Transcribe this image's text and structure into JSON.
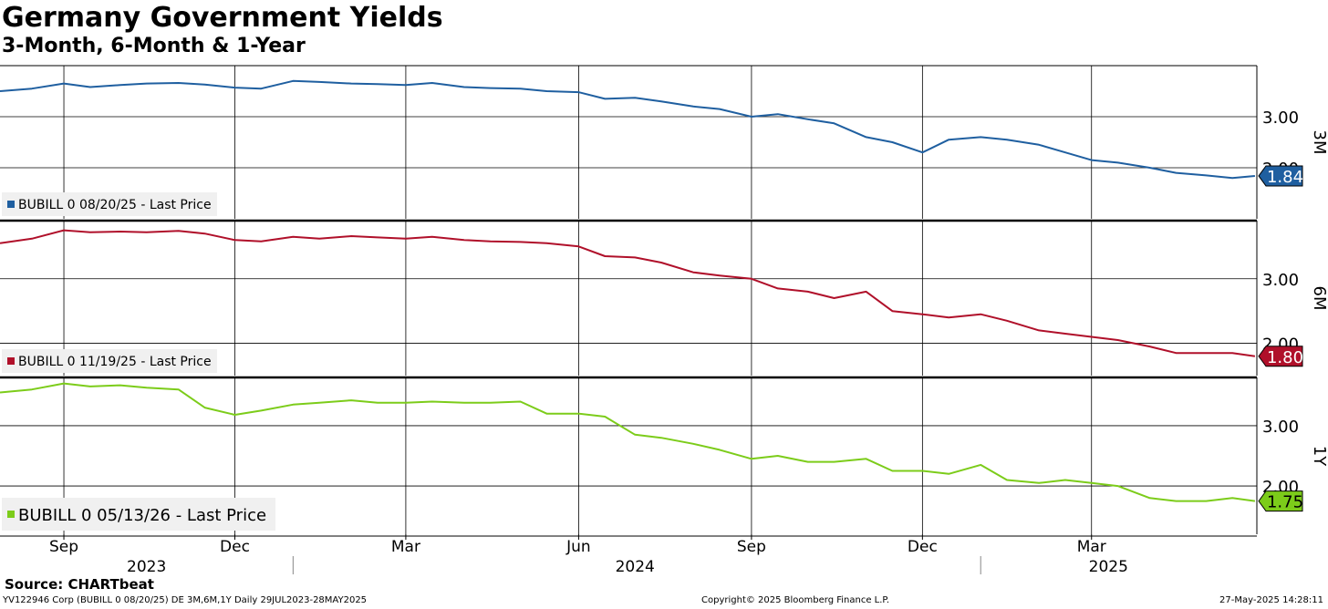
{
  "title": "Germany Government Yields",
  "subtitle": "3-Month, 6-Month & 1-Year",
  "source": "Source: CHARTbeat",
  "footer": {
    "left": "YV122946 Corp (BUBILL 0 08/20/25) DE 3M,6M,1Y  Daily 29JUL2023-28MAY2025",
    "center": "Copyright© 2025 Bloomberg Finance L.P.",
    "right": "27-May-2025 14:28:11"
  },
  "colors": {
    "blue": "#1f5fa0",
    "red": "#b0102a",
    "green": "#7ccc1a"
  },
  "chart_data": {
    "type": "line",
    "x_range": [
      "2023-07-29",
      "2025-05-28"
    ],
    "month_labels": [
      {
        "label": "Sep",
        "date": "2023-09-01"
      },
      {
        "label": "Dec",
        "date": "2023-12-01"
      },
      {
        "label": "Mar",
        "date": "2024-03-01"
      },
      {
        "label": "Jun",
        "date": "2024-06-01"
      },
      {
        "label": "Sep",
        "date": "2024-09-01"
      },
      {
        "label": "Dec",
        "date": "2024-12-01"
      },
      {
        "label": "Mar",
        "date": "2025-03-01"
      }
    ],
    "year_labels": [
      {
        "label": "2023",
        "date": "2023-10-15"
      },
      {
        "label": "2024",
        "date": "2024-07-01"
      },
      {
        "label": "2025",
        "date": "2025-03-10"
      }
    ],
    "year_dividers": [
      "2024-01-01",
      "2025-01-01"
    ],
    "panels": [
      {
        "axis_label": "3M",
        "ylim": [
          1.0,
          4.0
        ],
        "y_ticks": [
          3.0,
          2.0
        ],
        "tick_labels": [
          "3.00",
          "2.00"
        ],
        "legend": "BUBILL 0 08/20/25 - Last Price",
        "last_value": "1.84",
        "color": "#1f5fa0",
        "series": {
          "name": "BUBILL 0 08/20/25 - Last Price",
          "x": [
            "2023-07-29",
            "2023-08-15",
            "2023-09-01",
            "2023-09-15",
            "2023-10-01",
            "2023-10-15",
            "2023-11-01",
            "2023-11-15",
            "2023-12-01",
            "2023-12-15",
            "2024-01-01",
            "2024-01-15",
            "2024-02-01",
            "2024-02-15",
            "2024-03-01",
            "2024-03-15",
            "2024-04-01",
            "2024-04-15",
            "2024-05-01",
            "2024-05-15",
            "2024-06-01",
            "2024-06-15",
            "2024-07-01",
            "2024-07-15",
            "2024-08-01",
            "2024-08-15",
            "2024-09-01",
            "2024-09-15",
            "2024-10-01",
            "2024-10-15",
            "2024-11-01",
            "2024-11-15",
            "2024-12-01",
            "2024-12-15",
            "2025-01-01",
            "2025-01-15",
            "2025-02-01",
            "2025-02-15",
            "2025-03-01",
            "2025-03-15",
            "2025-04-01",
            "2025-04-15",
            "2025-05-01",
            "2025-05-15",
            "2025-05-27"
          ],
          "values": [
            3.5,
            3.55,
            3.65,
            3.58,
            3.62,
            3.65,
            3.66,
            3.63,
            3.57,
            3.55,
            3.7,
            3.68,
            3.65,
            3.64,
            3.62,
            3.66,
            3.58,
            3.56,
            3.55,
            3.5,
            3.48,
            3.35,
            3.37,
            3.3,
            3.2,
            3.15,
            3.0,
            3.05,
            2.95,
            2.87,
            2.6,
            2.5,
            2.3,
            2.55,
            2.6,
            2.55,
            2.45,
            2.3,
            2.15,
            2.1,
            2.0,
            1.9,
            1.85,
            1.8,
            1.84
          ]
        }
      },
      {
        "axis_label": "6M",
        "ylim": [
          1.5,
          3.9
        ],
        "y_ticks": [
          3.0,
          2.0
        ],
        "tick_labels": [
          "3.00",
          "2.00"
        ],
        "legend": "BUBILL 0 11/19/25 - Last Price",
        "last_value": "1.80",
        "color": "#b0102a",
        "series": {
          "name": "BUBILL 0 11/19/25 - Last Price",
          "x": [
            "2023-07-29",
            "2023-08-15",
            "2023-09-01",
            "2023-09-15",
            "2023-10-01",
            "2023-10-15",
            "2023-11-01",
            "2023-11-15",
            "2023-12-01",
            "2023-12-15",
            "2024-01-01",
            "2024-01-15",
            "2024-02-01",
            "2024-02-15",
            "2024-03-01",
            "2024-03-15",
            "2024-04-01",
            "2024-04-15",
            "2024-05-01",
            "2024-05-15",
            "2024-06-01",
            "2024-06-15",
            "2024-07-01",
            "2024-07-15",
            "2024-08-01",
            "2024-08-15",
            "2024-09-01",
            "2024-09-15",
            "2024-10-01",
            "2024-10-15",
            "2024-11-01",
            "2024-11-15",
            "2024-12-01",
            "2024-12-15",
            "2025-01-01",
            "2025-01-15",
            "2025-02-01",
            "2025-02-15",
            "2025-03-01",
            "2025-03-15",
            "2025-04-01",
            "2025-04-15",
            "2025-05-01",
            "2025-05-15",
            "2025-05-27"
          ],
          "values": [
            3.55,
            3.62,
            3.75,
            3.72,
            3.73,
            3.72,
            3.74,
            3.7,
            3.6,
            3.58,
            3.65,
            3.62,
            3.66,
            3.64,
            3.62,
            3.65,
            3.6,
            3.58,
            3.57,
            3.55,
            3.5,
            3.35,
            3.33,
            3.25,
            3.1,
            3.05,
            3.0,
            2.85,
            2.8,
            2.7,
            2.8,
            2.5,
            2.45,
            2.4,
            2.45,
            2.35,
            2.2,
            2.15,
            2.1,
            2.05,
            1.95,
            1.85,
            1.85,
            1.85,
            1.8
          ]
        }
      },
      {
        "axis_label": "1Y",
        "ylim": [
          1.2,
          3.8
        ],
        "y_ticks": [
          3.0,
          2.0
        ],
        "tick_labels": [
          "3.00",
          "2.00"
        ],
        "legend": "BUBILL 0 05/13/26 - Last Price",
        "last_value": "1.75",
        "color": "#7ccc1a",
        "series": {
          "name": "BUBILL 0 05/13/26 - Last Price",
          "x": [
            "2023-07-29",
            "2023-08-15",
            "2023-09-01",
            "2023-09-15",
            "2023-10-01",
            "2023-10-15",
            "2023-11-01",
            "2023-11-15",
            "2023-12-01",
            "2023-12-15",
            "2024-01-01",
            "2024-01-15",
            "2024-02-01",
            "2024-02-15",
            "2024-03-01",
            "2024-03-15",
            "2024-04-01",
            "2024-04-15",
            "2024-05-01",
            "2024-05-15",
            "2024-06-01",
            "2024-06-15",
            "2024-07-01",
            "2024-07-15",
            "2024-08-01",
            "2024-08-15",
            "2024-09-01",
            "2024-09-15",
            "2024-10-01",
            "2024-10-15",
            "2024-11-01",
            "2024-11-15",
            "2024-12-01",
            "2024-12-15",
            "2025-01-01",
            "2025-01-15",
            "2025-02-01",
            "2025-02-15",
            "2025-03-01",
            "2025-03-15",
            "2025-04-01",
            "2025-04-15",
            "2025-05-01",
            "2025-05-15",
            "2025-05-27"
          ],
          "values": [
            3.55,
            3.6,
            3.7,
            3.65,
            3.67,
            3.63,
            3.6,
            3.3,
            3.18,
            3.25,
            3.35,
            3.38,
            3.42,
            3.38,
            3.38,
            3.4,
            3.38,
            3.38,
            3.4,
            3.2,
            3.2,
            3.15,
            2.85,
            2.8,
            2.7,
            2.6,
            2.45,
            2.5,
            2.4,
            2.4,
            2.45,
            2.25,
            2.25,
            2.2,
            2.35,
            2.1,
            2.05,
            2.1,
            2.05,
            2.0,
            1.8,
            1.75,
            1.75,
            1.8,
            1.75
          ]
        }
      }
    ]
  }
}
